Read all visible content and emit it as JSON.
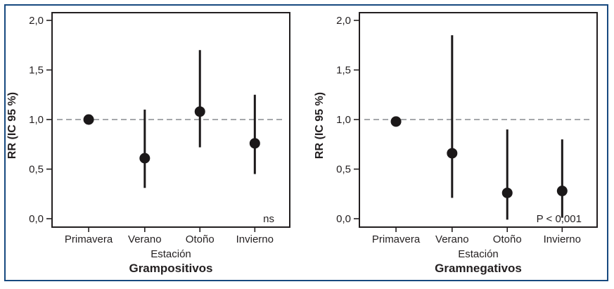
{
  "figure": {
    "border_color": "#17497f",
    "text_color": "#231f20",
    "dashed_line_color": "#a6a8ab",
    "point_color": "#1b1819",
    "background": "#ffffff"
  },
  "chart_data": [
    {
      "type": "scatter",
      "title": "Grampositivos",
      "xlabel": "Estación",
      "ylabel": "RR (IC 95 %)",
      "categories": [
        "Primavera",
        "Verano",
        "Otoño",
        "Invierno"
      ],
      "series": [
        {
          "name": "RR",
          "values": [
            1.0,
            0.61,
            1.08,
            0.76
          ]
        }
      ],
      "ci_low": [
        0.96,
        0.31,
        0.72,
        0.45
      ],
      "ci_high": [
        1.04,
        1.1,
        1.7,
        1.25
      ],
      "reference_line": 1.0,
      "annotation": "ns",
      "yticks": [
        0.0,
        0.5,
        1.0,
        1.5,
        2.0
      ],
      "ytick_labels": [
        "0,0",
        "0,5",
        "1,0",
        "1,5",
        "2,0"
      ],
      "ylim": [
        -0.085,
        2.078
      ],
      "grid": false,
      "legend": "none"
    },
    {
      "type": "scatter",
      "title": "Gramnegativos",
      "xlabel": "Estación",
      "ylabel": "RR (IC 95 %)",
      "categories": [
        "Primavera",
        "Verano",
        "Otoño",
        "Invierno"
      ],
      "series": [
        {
          "name": "RR",
          "values": [
            0.98,
            0.66,
            0.26,
            0.28
          ]
        }
      ],
      "ci_low": [
        0.95,
        0.21,
        -0.01,
        0.01
      ],
      "ci_high": [
        1.01,
        1.85,
        0.9,
        0.8
      ],
      "reference_line": 1.0,
      "annotation": "P < 0,001",
      "yticks": [
        0.0,
        0.5,
        1.0,
        1.5,
        2.0
      ],
      "ytick_labels": [
        "0,0",
        "0,5",
        "1,0",
        "1,5",
        "2,0"
      ],
      "ylim": [
        -0.085,
        2.078
      ],
      "grid": false,
      "legend": "none"
    }
  ]
}
